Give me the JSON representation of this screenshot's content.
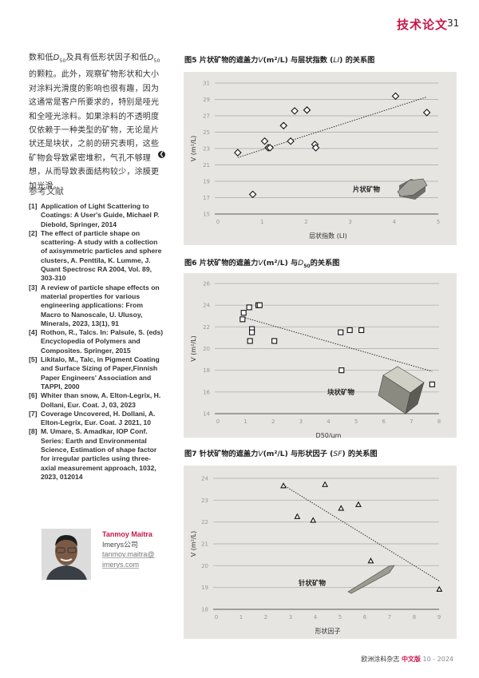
{
  "header": {
    "section": "技术论文",
    "page": "31"
  },
  "body": {
    "segments": [
      {
        "t": "数和低"
      },
      {
        "t": "D",
        "i": true
      },
      {
        "t": "50",
        "sub": true
      },
      {
        "t": "及具有低形状因子和低"
      },
      {
        "t": "D",
        "i": true
      },
      {
        "t": "50",
        "sub": true
      },
      {
        "t": "的颗粒。此外，观察矿物形状和大小对涂料光滑度的影响也很有趣，因为这通常是客户所要求的，特别是哑光和全哑光涂料。如果涂料的不透明度仅依赖于一种类型的矿物，无论是片状还是块状，之前的研究表明，这些矿物会导致紧密堆积，气孔不够理想，从而导致表面结构较少，涂膜更加光滑。"
      }
    ],
    "end_icon": "end-of-article-icon"
  },
  "references": {
    "heading": "参考文献",
    "items": [
      {
        "n": "[1]",
        "text": "Application of Light Scattering to Coatings: A User's Guide, Michael P. Diebold, Springer, 2014"
      },
      {
        "n": "[2]",
        "text": "The effect of particle shape on scattering- A study with a collection of axisymmetric particles and sphere clusters, A. Penttila, K. Lumme, J. Quant Spectrosc RA 2004, Vol. 89, 303-310"
      },
      {
        "n": "[3]",
        "text": "A review of particle shape effects on material properties for various engineering applications:  From Macro to Nanoscale, U. Ulusoy, Minerals, 2023, 13(1), 91"
      },
      {
        "n": "[4]",
        "text": "Rothon, R., Talcs. In: Palsule, S. (eds) Encyclopedia of Polymers and Composites. Springer, 2015"
      },
      {
        "n": "[5]",
        "text": "Likitalo, M., Talc, in Pigment Coating and Surface Sizing of Paper,Finnish Paper Engineers' Association and TAPPI, 2000"
      },
      {
        "n": "[6]",
        "text": "Whiter than snow, A. Elton-Legrix, H. Dollani, Eur. Coat. J, 03, 2023"
      },
      {
        "n": "[7]",
        "text": "Coverage Uncovered, H. Dollani, A. Elton-Legrix, Eur. Coat. J 2021, 10"
      },
      {
        "n": "[8]",
        "text": "M. Umare, S. Amadkar, IOP Conf. Series: Earth and Environmental Science, Estimation of shape factor for irregular particles using three-axial measurement approach, 1032, 2023, 012014"
      }
    ]
  },
  "author": {
    "name": "Tanmoy Maitra",
    "company": "Imerys公司",
    "email_line1": "tanmoy.maitra@",
    "email_line2": "imerys.com"
  },
  "figures": [
    {
      "title": [
        {
          "t": "图5 片状矿物的遮盖力"
        },
        {
          "t": "V",
          "i": true
        },
        {
          "t": "(m²/L) 与层状指数 ("
        },
        {
          "t": "LI",
          "i": true
        },
        {
          "t": ") 的关系图"
        }
      ]
    },
    {
      "title": [
        {
          "t": "图6 片状矿物的遮盖力"
        },
        {
          "t": "V",
          "i": true
        },
        {
          "t": "(m²/L) 与"
        },
        {
          "t": "D",
          "i": true
        },
        {
          "t": "50",
          "sub": true
        },
        {
          "t": "的关系图"
        }
      ]
    },
    {
      "title": [
        {
          "t": "图7 针状矿物的遮盖力"
        },
        {
          "t": "V",
          "i": true
        },
        {
          "t": "(m²/L) 与形状因子 ("
        },
        {
          "t": "SF",
          "i": true
        },
        {
          "t": ") 的关系图"
        }
      ]
    }
  ],
  "chart_data": [
    {
      "type": "scatter",
      "marker": "diamond",
      "xlabel": "层状指数 (LI)",
      "ylabel": "V (m²/L)",
      "xlim": [
        0,
        5
      ],
      "ylim": [
        15,
        31
      ],
      "xticks": [
        0,
        1,
        2,
        3,
        4,
        5
      ],
      "yticks": [
        15,
        17,
        19,
        21,
        23,
        25,
        27,
        29,
        31
      ],
      "grid": "horizontal",
      "annotation": "片状矿物",
      "shape_icon": "hexagonal-plate",
      "x": [
        0.45,
        0.79,
        1.06,
        1.14,
        1.18,
        1.49,
        1.65,
        1.74,
        2.02,
        2.2,
        2.22,
        4.03,
        4.74
      ],
      "y": [
        22.5,
        17.4,
        23.9,
        23.1,
        23.1,
        25.8,
        23.9,
        27.6,
        27.7,
        23.5,
        23.1,
        29.4,
        27.4
      ],
      "trendline": {
        "x": [
          0.45,
          4.74
        ],
        "y": [
          21.9,
          29.3
        ]
      }
    },
    {
      "type": "scatter",
      "marker": "square",
      "xlabel": "D50/μm",
      "ylabel": "V (m²/L)",
      "xlim": [
        0,
        8
      ],
      "ylim": [
        14,
        26
      ],
      "xticks": [
        0,
        1,
        2,
        3,
        4,
        5,
        6,
        7,
        8
      ],
      "yticks": [
        14,
        16,
        18,
        20,
        22,
        24,
        26
      ],
      "grid": "horizontal",
      "annotation": "块状矿物",
      "shape_icon": "block-cube",
      "x": [
        0.89,
        0.93,
        1.13,
        1.46,
        1.51,
        1.23,
        1.23,
        1.16,
        2.04,
        4.44,
        4.77,
        5.19,
        4.47,
        7.75
      ],
      "y": [
        22.7,
        23.3,
        23.8,
        24.0,
        24.0,
        21.8,
        21.5,
        20.7,
        20.7,
        21.5,
        21.7,
        21.7,
        18.0,
        16.7
      ],
      "trendline": {
        "x": [
          0.9,
          7.75
        ],
        "y": [
          22.9,
          17.9
        ]
      }
    },
    {
      "type": "scatter",
      "marker": "triangle",
      "xlabel": "形状因子",
      "ylabel": "V (m²/L)",
      "xlim": [
        0,
        9
      ],
      "ylim": [
        18,
        24
      ],
      "xticks": [
        0,
        1,
        2,
        3,
        4,
        5,
        6,
        7,
        8,
        9
      ],
      "yticks": [
        18,
        19,
        20,
        21,
        22,
        23,
        24
      ],
      "grid": "horizontal",
      "annotation": "针状矿物",
      "shape_icon": "needle",
      "x": [
        2.71,
        3.27,
        3.91,
        4.39,
        5.04,
        5.74,
        6.24,
        9.01
      ],
      "y": [
        23.66,
        22.25,
        22.08,
        23.72,
        22.63,
        22.8,
        20.22,
        18.92
      ],
      "trendline": {
        "x": [
          2.7,
          9.0
        ],
        "y": [
          23.7,
          19.3
        ]
      }
    }
  ],
  "footer": {
    "magazine": "欧洲涂料杂志",
    "edition": "中文版",
    "issue": "10 - 2024"
  },
  "colors": {
    "accent": "#c8174a",
    "chart_bg": "#e7e5e2",
    "grid": "#b9b7b3"
  }
}
